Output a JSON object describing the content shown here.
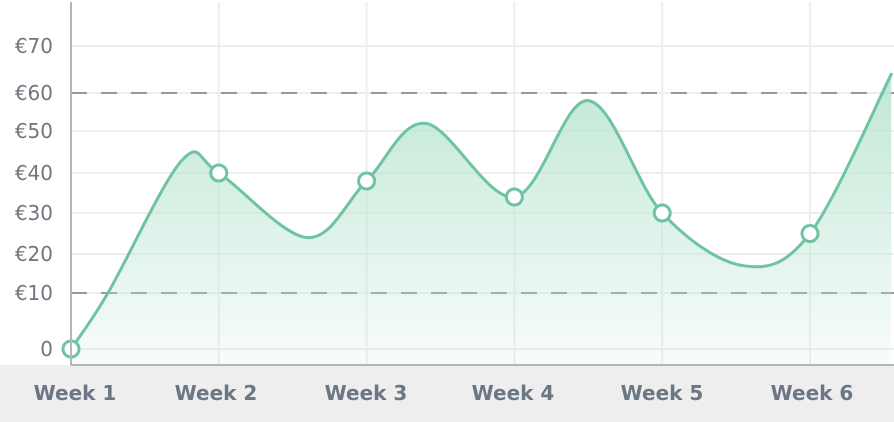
{
  "chart_data": {
    "type": "area",
    "categories": [
      "Week 1",
      "Week 2",
      "Week 3",
      "Week 4",
      "Week 5",
      "Week 6"
    ],
    "x": [
      1,
      2,
      3,
      4,
      5,
      6
    ],
    "y_tick_labels": [
      "0",
      "€10",
      "€20",
      "€30",
      "€40",
      "€50",
      "€60",
      "€70"
    ],
    "y_ticks": [
      0,
      10,
      20,
      30,
      40,
      50,
      60,
      70
    ],
    "reference_lines": [
      10,
      60
    ],
    "series": [
      {
        "points": [
          {
            "x": 1.0,
            "y": 0
          },
          {
            "x": 1.25,
            "y": 10
          },
          {
            "x": 1.75,
            "y": 43
          },
          {
            "x": 2.0,
            "y": 40
          },
          {
            "x": 2.6,
            "y": 24
          },
          {
            "x": 3.0,
            "y": 38
          },
          {
            "x": 3.4,
            "y": 52
          },
          {
            "x": 4.0,
            "y": 34
          },
          {
            "x": 4.5,
            "y": 58
          },
          {
            "x": 5.0,
            "y": 30
          },
          {
            "x": 5.55,
            "y": 17
          },
          {
            "x": 6.0,
            "y": 25
          },
          {
            "x": 6.55,
            "y": 64
          }
        ],
        "markers": [
          {
            "x": 1,
            "y": 0
          },
          {
            "x": 2,
            "y": 40
          },
          {
            "x": 3,
            "y": 38
          },
          {
            "x": 4,
            "y": 34
          },
          {
            "x": 5,
            "y": 30
          },
          {
            "x": 6,
            "y": 25
          }
        ]
      }
    ],
    "grid": true,
    "colors": {
      "line": "#6ec3a2",
      "fill": "#bde6d3",
      "marker_stroke": "#6ec3a2",
      "marker_fill": "#ffffff",
      "grid": "#eeeeee",
      "reference_line": "#8f98a3",
      "axis": "#b6b6b6",
      "x_axis_band": "#eeeeee"
    }
  }
}
